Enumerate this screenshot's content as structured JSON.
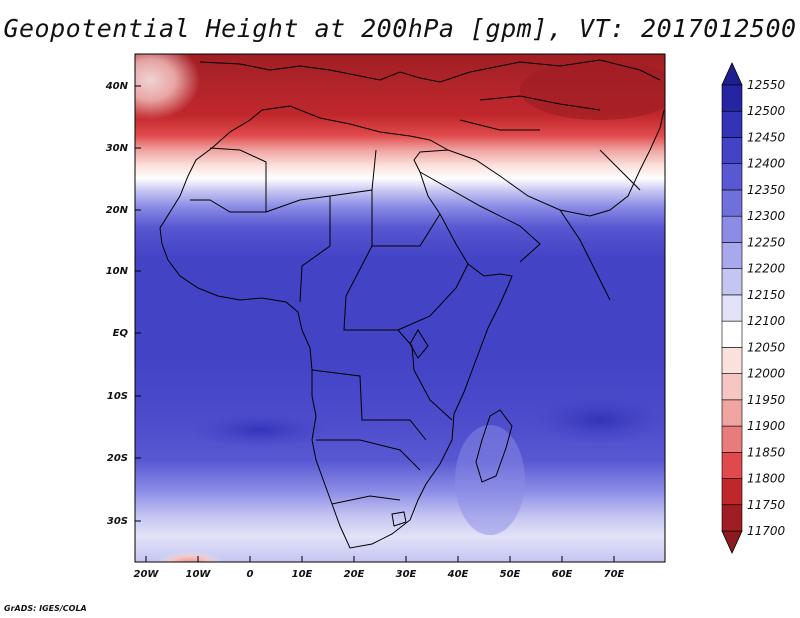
{
  "title": "Geopotential Height at 200hPa [gpm], VT: 2017012500",
  "credit": "GrADS: IGES/COLA",
  "lat_labels": [
    "40N",
    "30N",
    "20N",
    "10N",
    "EQ",
    "10S",
    "20S",
    "30S"
  ],
  "lon_labels": [
    "20W",
    "10W",
    "0",
    "10E",
    "20E",
    "30E",
    "40E",
    "50E",
    "60E",
    "70E"
  ],
  "colorbar": {
    "levels": [
      "11700",
      "11750",
      "11800",
      "11850",
      "11900",
      "11950",
      "12000",
      "12050",
      "12100",
      "12150",
      "12200",
      "12250",
      "12300",
      "12350",
      "12400",
      "12450",
      "12500",
      "12550"
    ],
    "colors": [
      "#a01e23",
      "#c0272c",
      "#e04a4c",
      "#e87b7b",
      "#f0a5a2",
      "#f6c6c2",
      "#fbe1dd",
      "#ffffff",
      "#e2e2f8",
      "#c5c5f2",
      "#a8a8ec",
      "#8c8ce6",
      "#7070dc",
      "#5858d2",
      "#4343c6",
      "#3333b8",
      "#2525a4"
    ]
  },
  "chart_data": {
    "type": "heatmap",
    "variable": "Geopotential Height at 200hPa",
    "units": "gpm",
    "valid_time": "2017012500",
    "lon_range": [
      -22,
      80
    ],
    "lat_range": [
      -37,
      45
    ],
    "levels": [
      11700,
      11750,
      11800,
      11850,
      11900,
      11950,
      12000,
      12050,
      12100,
      12150,
      12200,
      12250,
      12300,
      12350,
      12400,
      12450,
      12500,
      12550
    ],
    "field_bands": [
      {
        "lat_from": 45,
        "lat_to": 32,
        "value_range": [
          11700,
          11800
        ]
      },
      {
        "lat_from": 32,
        "lat_to": 25,
        "value_range": [
          11800,
          12050
        ]
      },
      {
        "lat_from": 25,
        "lat_to": 20,
        "value_range": [
          12100,
          12300
        ]
      },
      {
        "lat_from": 20,
        "lat_to": 12,
        "value_range": [
          12300,
          12400
        ]
      },
      {
        "lat_from": 12,
        "lat_to": -23,
        "value_range": [
          12400,
          12450
        ]
      },
      {
        "lat_from": -23,
        "lat_to": -37,
        "value_range": [
          12100,
          12350
        ]
      }
    ]
  }
}
